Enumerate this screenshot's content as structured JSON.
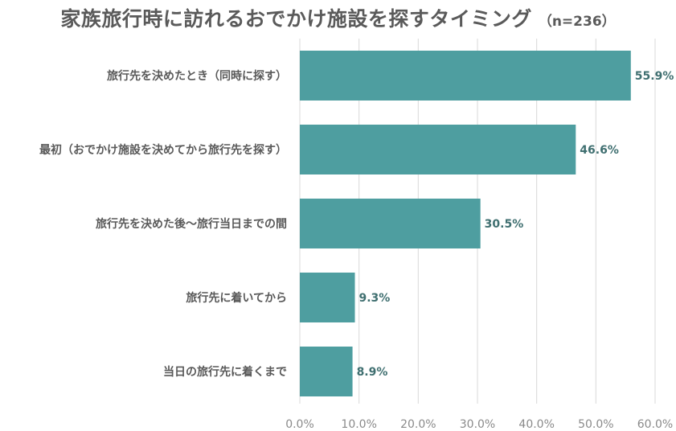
{
  "title": "家族旅行時に訪れるおでかけ施設を探すタイミング",
  "note": "（n=236）",
  "colors": {
    "bar": "#4e9ea0",
    "grid": "#d9d9d9",
    "value_label": "#3f6f70"
  },
  "chart_data": {
    "type": "bar",
    "orientation": "horizontal",
    "categories": [
      "旅行先を決めたとき（同時に探す）",
      "最初（おでかけ施設を決めてから旅行先を探す）",
      "旅行先を決めた後～旅行当日までの間",
      "旅行先に着いてから",
      "当日の旅行先に着くまで"
    ],
    "values": [
      55.9,
      46.6,
      30.5,
      9.3,
      8.9
    ],
    "value_labels": [
      "55.9%",
      "46.6%",
      "30.5%",
      "9.3%",
      "8.9%"
    ],
    "xlim": [
      0,
      60
    ],
    "ticks": [
      0,
      10,
      20,
      30,
      40,
      50,
      60
    ],
    "tick_labels": [
      "0.0%",
      "10.0%",
      "20.0%",
      "30.0%",
      "40.0%",
      "50.0%",
      "60.0%"
    ],
    "grid": true,
    "legend": "none"
  }
}
